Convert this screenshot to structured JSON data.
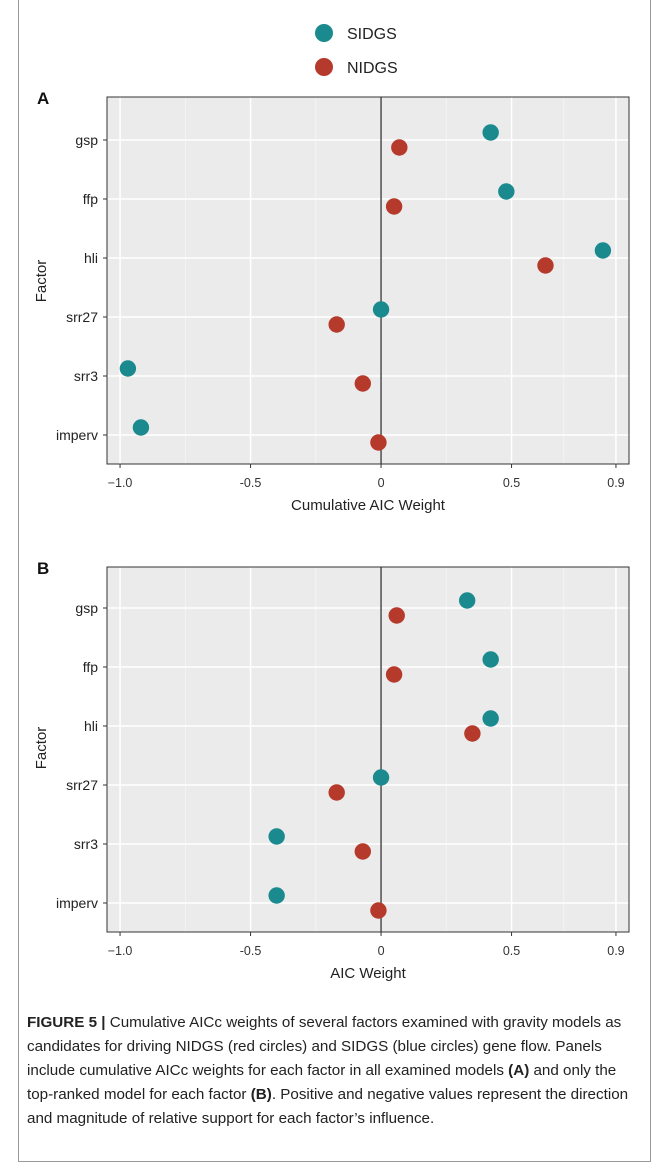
{
  "legend": [
    {
      "name": "SIDGS",
      "color": "#1a8a8f"
    },
    {
      "name": "NIDGS",
      "color": "#b53a2b"
    }
  ],
  "chart_data": [
    {
      "panel": "A",
      "type": "scatter",
      "xlabel": "Cumulative AIC Weight",
      "ylabel": "Factor",
      "xlim": [
        -1.05,
        0.95
      ],
      "xticks": [
        -1.0,
        -0.5,
        0,
        0.5,
        0.9
      ],
      "xtick_labels": [
        "−1.0",
        "-0.5",
        "0",
        "0.5",
        "0.9"
      ],
      "categories": [
        "gsp",
        "ffp",
        "hli",
        "srr27",
        "srr3",
        "imperv"
      ],
      "vline": 0,
      "grid": true,
      "series": [
        {
          "name": "SIDGS",
          "values": [
            0.42,
            0.48,
            0.85,
            0.0,
            -0.97,
            -0.92
          ]
        },
        {
          "name": "NIDGS",
          "values": [
            0.07,
            0.05,
            0.63,
            -0.17,
            -0.07,
            -0.01
          ]
        }
      ]
    },
    {
      "panel": "B",
      "type": "scatter",
      "xlabel": "AIC Weight",
      "ylabel": "Factor",
      "xlim": [
        -1.05,
        0.95
      ],
      "xticks": [
        -1.0,
        -0.5,
        0,
        0.5,
        0.9
      ],
      "xtick_labels": [
        "−1.0",
        "-0.5",
        "0",
        "0.5",
        "0.9"
      ],
      "categories": [
        "gsp",
        "ffp",
        "hli",
        "srr27",
        "srr3",
        "imperv"
      ],
      "vline": 0,
      "grid": true,
      "series": [
        {
          "name": "SIDGS",
          "values": [
            0.33,
            0.42,
            0.42,
            0.0,
            -0.4,
            -0.4
          ]
        },
        {
          "name": "NIDGS",
          "values": [
            0.06,
            0.05,
            0.35,
            -0.17,
            -0.07,
            -0.01
          ]
        }
      ]
    }
  ],
  "caption": {
    "label": "FIGURE 5 |",
    "t1": " Cumulative AICc weights of several factors examined with gravity models as candidates for driving NIDGS (red circles) and SIDGS (blue circles) gene flow. Panels include cumulative AICc weights for each factor in all examined models ",
    "refA": "(A)",
    "t2": " and only the top-ranked model for each factor ",
    "refB": "(B)",
    "t3": ". Positive and negative values represent the direction and magnitude of relative support for each factor’s influence."
  }
}
